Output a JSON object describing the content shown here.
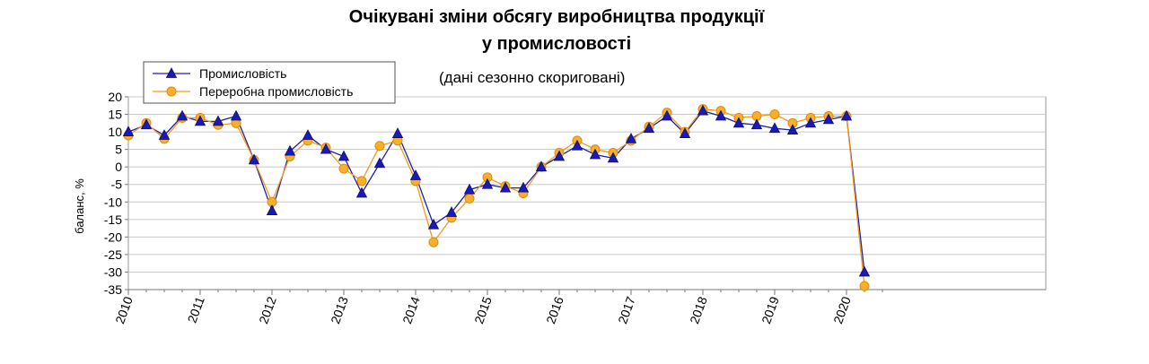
{
  "chart_data": {
    "type": "line",
    "title_line1": "Очікувані зміни обсягу виробництва продукції",
    "title_line2": "у промисловості",
    "subtitle": "(дані сезонно скориговані)",
    "ylabel": "баланс, %",
    "ylim": [
      -35,
      20
    ],
    "yticks": [
      20,
      15,
      10,
      5,
      0,
      -5,
      -10,
      -15,
      -20,
      -25,
      -30,
      -35
    ],
    "year_labels": [
      "2010",
      "2011",
      "2012",
      "2013",
      "2014",
      "2015",
      "2016",
      "2017",
      "2018",
      "2019",
      "2020"
    ],
    "grid": true,
    "legend_position": "top-left",
    "series": [
      {
        "name": "Промисловість",
        "color": "#1f1fa8",
        "marker": "triangle",
        "values": [
          10,
          12,
          9,
          14.5,
          13,
          13,
          14.5,
          2,
          -12.5,
          4.5,
          9,
          5,
          3,
          -7.5,
          1,
          9.5,
          -2.5,
          -16.5,
          -13,
          -6.5,
          -5,
          -6,
          -6,
          0,
          3,
          6,
          3.5,
          2.5,
          8,
          11,
          14.5,
          9.5,
          16,
          14.5,
          12.5,
          12,
          11,
          10.5,
          12.5,
          13.5,
          14.5,
          -30
        ]
      },
      {
        "name": "Переробна промисловість",
        "color": "#f29a1e",
        "marker": "circle",
        "values": [
          9,
          12.5,
          8,
          14,
          14,
          12,
          12.5,
          2,
          -10,
          3,
          7.5,
          5.5,
          -0.5,
          -4,
          6,
          7.5,
          -4,
          -21.5,
          -14.5,
          -9,
          -3,
          -5.5,
          -7.5,
          0,
          4,
          7.5,
          5,
          4,
          7.5,
          11.5,
          15.5,
          10,
          16.5,
          16,
          14,
          14.5,
          15,
          12.5,
          14,
          14.5,
          14.5,
          -34
        ]
      }
    ]
  }
}
